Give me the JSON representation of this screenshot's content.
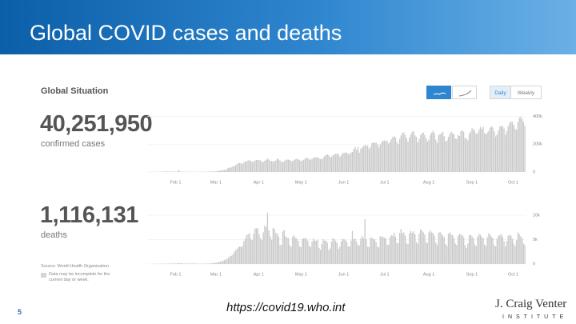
{
  "slide": {
    "title": "Global COVID cases and deaths",
    "panel_title": "Global Situation",
    "cases_total": "40,251,950",
    "cases_caption": "confirmed cases",
    "deaths_total": "1,116,131",
    "deaths_caption": "deaths",
    "source": "Source: World Health Organization",
    "note": "Data may be incomplete for the current day or week.",
    "buttons": [
      "Daily",
      "Weekly"
    ],
    "page_number": "5",
    "url": "https://covid19.who.int",
    "logo": "J. Craig Venter",
    "logo_sub": "INSTITUTE"
  },
  "chart_data": [
    {
      "type": "bar",
      "color": "#c9c9c9",
      "grid": true,
      "categories": [
        null,
        null,
        null,
        null,
        null,
        null,
        null,
        null,
        null,
        null,
        "Feb 1",
        null,
        null,
        null,
        null,
        null,
        null,
        null,
        null,
        null,
        null,
        null,
        null,
        null,
        null,
        null,
        null,
        null,
        null,
        null,
        null,
        null,
        null,
        null,
        null,
        null,
        null,
        null,
        null,
        "Mar 1",
        null,
        null,
        null,
        null,
        null,
        null,
        null,
        null,
        null,
        null,
        null,
        null,
        null,
        null,
        null,
        null,
        null,
        null,
        null,
        null,
        null,
        null,
        null,
        null,
        null,
        null,
        null,
        null,
        null,
        null,
        "Apr 1",
        null,
        null,
        null,
        null,
        null,
        null,
        null,
        null,
        null,
        null,
        null,
        null,
        null,
        null,
        null,
        null,
        null,
        null,
        null,
        null,
        null,
        null,
        null,
        null,
        null,
        null,
        null,
        null,
        null,
        "May 1",
        null,
        null,
        null,
        null,
        null,
        null,
        null,
        null,
        null,
        null,
        null,
        null,
        null,
        null,
        null,
        null,
        null,
        null,
        null,
        null,
        null,
        null,
        null,
        null,
        null,
        null,
        null,
        null,
        null,
        null,
        "Jun 1",
        null,
        null,
        null,
        null,
        null,
        null,
        null,
        null,
        null,
        null,
        null,
        null,
        null,
        null,
        null,
        null,
        null,
        null,
        null,
        null,
        null,
        null,
        null,
        null,
        null,
        null,
        null,
        null,
        null,
        "Jul 1",
        null,
        null,
        null,
        null,
        null,
        null,
        null,
        null,
        null,
        null,
        null,
        null,
        null,
        null,
        null,
        null,
        null,
        null,
        null,
        null,
        null,
        null,
        null,
        null,
        null,
        null,
        null,
        null,
        null,
        null,
        "Aug 1",
        null,
        null,
        null,
        null,
        null,
        null,
        null,
        null,
        null,
        null,
        null,
        null,
        null,
        null,
        null,
        null,
        null,
        null,
        null,
        null,
        null,
        null,
        null,
        null,
        null,
        null,
        null,
        null,
        null,
        null,
        "Sep 1",
        null,
        null,
        null,
        null,
        null,
        null,
        null,
        null,
        null,
        null,
        null,
        null,
        null,
        null,
        null,
        null,
        null,
        null,
        null,
        null,
        null,
        null,
        null,
        null,
        null,
        null,
        null,
        null,
        null,
        "Oct 1",
        null,
        null,
        null,
        null,
        null,
        null,
        null,
        null,
        null,
        null,
        null,
        null,
        null,
        null,
        null,
        null,
        null,
        null
      ],
      "values": [
        0.6,
        0.1,
        0.3,
        0.7,
        0.7,
        0.8,
        1.8,
        1.2,
        1.7,
        2.0,
        2.1,
        2.6,
        2.8,
        3.2,
        3.8,
        3.2,
        3.4,
        2.7,
        3.0,
        2.5,
        2.0,
        2.0,
        15.1,
        4.0,
        2.6,
        2.1,
        2.1,
        2.0,
        1.7,
        0.6,
        1.0,
        1.1,
        1.4,
        0.6,
        0.9,
        0.9,
        1.2,
        1.4,
        1.8,
        2.0,
        1.9,
        2.4,
        2.2,
        2.8,
        2.8,
        3.9,
        3.6,
        3.6,
        4.4,
        4.6,
        6.9,
        8.9,
        10.6,
        11.4,
        13.9,
        13.7,
        16.3,
        24.5,
        30.1,
        31.5,
        32.8,
        40.1,
        41.2,
        48.7,
        55.8,
        62.9,
        64.9,
        62.3,
        58.3,
        70.5,
        75.3,
        77.2,
        83.5,
        84.3,
        78.4,
        72.6,
        74.3,
        82.1,
        86.3,
        86.0,
        86.8,
        81.9,
        73.1,
        71.8,
        81.2,
        87.3,
        97.2,
        89.4,
        79.0,
        78.3,
        73.6,
        80.0,
        83.4,
        98.2,
        89.7,
        82.5,
        73.5,
        72.8,
        76.5,
        87.4,
        89.2,
        88.7,
        85.8,
        80.1,
        77.2,
        85.4,
        91.2,
        94.5,
        92.8,
        86.5,
        78.6,
        83.0,
        88.1,
        97.4,
        101.1,
        99.6,
        92.3,
        87.2,
        97.3,
        100.6,
        105.9,
        105.4,
        107.0,
        98.7,
        94.3,
        91.5,
        101.2,
        114.4,
        121.9,
        127.5,
        120.6,
        106.2,
        109.8,
        120.9,
        125.5,
        130.8,
        131.8,
        130.5,
        109.0,
        121.4,
        134.9,
        137.5,
        140.1,
        139.4,
        131.4,
        127.9,
        139.7,
        144.4,
        166.3,
        181.2,
        157.9,
        181.3,
        139.4,
        166.9,
        176.5,
        185.4,
        194.7,
        188.5,
        191.3,
        165.8,
        178.6,
        207.2,
        212.5,
        207.4,
        213.8,
        199.7,
        176.3,
        197.5,
        214.1,
        225.3,
        228.0,
        220.6,
        225.0,
        204.3,
        216.5,
        234.4,
        251.5,
        257.4,
        248.2,
        216.3,
        201.2,
        237.0,
        262.6,
        281.0,
        283.6,
        265.7,
        242.9,
        218.9,
        248.3,
        271.5,
        289.6,
        292.0,
        263.2,
        253.2,
        212.7,
        237.0,
        264.7,
        280.6,
        283.8,
        266.8,
        242.9,
        219.4,
        231.6,
        267.5,
        283.5,
        297.0,
        279.4,
        232.4,
        209.6,
        264.9,
        273.8,
        277.6,
        288.5,
        257.4,
        221.8,
        226.4,
        253.0,
        274.5,
        290.1,
        279.8,
        271.4,
        240.8,
        238.2,
        264.5,
        259.7,
        293.0,
        299.1,
        290.2,
        242.6,
        241.1,
        227.6,
        276.1,
        290.5,
        314.2,
        308.8,
        294.8,
        272.6,
        281.3,
        303.3,
        324.0,
        309.7,
        327.2,
        280.2,
        270.2,
        283.6,
        294.9,
        318.6,
        328.5,
        320.3,
        291.7,
        255.9,
        270.6,
        299.1,
        328.5,
        330.3,
        330.0,
        313.2,
        267.7,
        292.5,
        328.1,
        355.6,
        362.9,
        360.6,
        339.2,
        311.3,
        302.9,
        357.7,
        391.4,
        396.8,
        383.5,
        359.7,
        331.2
      ],
      "ylim": [
        0,
        420
      ],
      "yticks": [
        0,
        {
          "value": 200,
          "label": "200k"
        },
        {
          "value": 400,
          "label": "400k"
        }
      ]
    },
    {
      "type": "bar",
      "color": "#c9c9c9",
      "grid": true,
      "categories": [
        null,
        null,
        null,
        null,
        null,
        null,
        null,
        null,
        null,
        null,
        "Feb 1",
        null,
        null,
        null,
        null,
        null,
        null,
        null,
        null,
        null,
        null,
        null,
        null,
        null,
        null,
        null,
        null,
        null,
        null,
        null,
        null,
        null,
        null,
        null,
        null,
        null,
        null,
        null,
        null,
        "Mar 1",
        null,
        null,
        null,
        null,
        null,
        null,
        null,
        null,
        null,
        null,
        null,
        null,
        null,
        null,
        null,
        null,
        null,
        null,
        null,
        null,
        null,
        null,
        null,
        null,
        null,
        null,
        null,
        null,
        null,
        null,
        "Apr 1",
        null,
        null,
        null,
        null,
        null,
        null,
        null,
        null,
        null,
        null,
        null,
        null,
        null,
        null,
        null,
        null,
        null,
        null,
        null,
        null,
        null,
        null,
        null,
        null,
        null,
        null,
        null,
        null,
        null,
        "May 1",
        null,
        null,
        null,
        null,
        null,
        null,
        null,
        null,
        null,
        null,
        null,
        null,
        null,
        null,
        null,
        null,
        null,
        null,
        null,
        null,
        null,
        null,
        null,
        null,
        null,
        null,
        null,
        null,
        null,
        null,
        "Jun 1",
        null,
        null,
        null,
        null,
        null,
        null,
        null,
        null,
        null,
        null,
        null,
        null,
        null,
        null,
        null,
        null,
        null,
        null,
        null,
        null,
        null,
        null,
        null,
        null,
        null,
        null,
        null,
        null,
        null,
        "Jul 1",
        null,
        null,
        null,
        null,
        null,
        null,
        null,
        null,
        null,
        null,
        null,
        null,
        null,
        null,
        null,
        null,
        null,
        null,
        null,
        null,
        null,
        null,
        null,
        null,
        null,
        null,
        null,
        null,
        null,
        null,
        "Aug 1",
        null,
        null,
        null,
        null,
        null,
        null,
        null,
        null,
        null,
        null,
        null,
        null,
        null,
        null,
        null,
        null,
        null,
        null,
        null,
        null,
        null,
        null,
        null,
        null,
        null,
        null,
        null,
        null,
        null,
        null,
        "Sep 1",
        null,
        null,
        null,
        null,
        null,
        null,
        null,
        null,
        null,
        null,
        null,
        null,
        null,
        null,
        null,
        null,
        null,
        null,
        null,
        null,
        null,
        null,
        null,
        null,
        null,
        null,
        null,
        null,
        null,
        "Oct 1",
        null,
        null,
        null,
        null,
        null,
        null,
        null,
        null,
        null,
        null,
        null,
        null,
        null,
        null,
        null,
        null,
        null,
        null
      ],
      "values": [
        0.02,
        0.0,
        0.01,
        0.02,
        0.02,
        0.03,
        0.03,
        0.04,
        0.04,
        0.04,
        0.05,
        0.06,
        0.06,
        0.07,
        0.07,
        0.08,
        0.09,
        0.09,
        0.1,
        0.1,
        0.1,
        0.1,
        0.25,
        0.14,
        0.14,
        0.1,
        0.1,
        0.1,
        0.1,
        0.1,
        0.1,
        0.1,
        0.1,
        0.1,
        0.1,
        0.05,
        0.1,
        0.05,
        0.06,
        0.06,
        0.07,
        0.08,
        0.08,
        0.09,
        0.1,
        0.1,
        0.2,
        0.2,
        0.2,
        0.3,
        0.3,
        0.4,
        0.5,
        0.5,
        0.7,
        0.8,
        0.9,
        1.1,
        1.3,
        1.6,
        1.7,
        1.9,
        2.4,
        2.8,
        3.1,
        3.4,
        3.6,
        3.5,
        3.7,
        4.7,
        5.2,
        5.9,
        6.1,
        6.3,
        5.2,
        4.9,
        6.2,
        7.3,
        7.3,
        7.4,
        6.1,
        5.3,
        4.9,
        6.5,
        7.9,
        7.6,
        10.5,
        6.9,
        5.7,
        5.0,
        7.4,
        7.2,
        6.4,
        6.2,
        5.6,
        3.9,
        3.9,
        6.7,
        7.0,
        5.7,
        5.4,
        5.3,
        3.9,
        3.5,
        5.6,
        5.9,
        5.4,
        5.3,
        4.8,
        3.6,
        3.5,
        5.1,
        5.3,
        5.3,
        5.2,
        4.8,
        3.7,
        3.5,
        4.6,
        5.2,
        4.8,
        4.8,
        4.9,
        3.3,
        2.9,
        4.1,
        5.1,
        4.8,
        4.8,
        4.4,
        2.9,
        3.2,
        4.6,
        5.3,
        5.1,
        4.8,
        4.3,
        3.1,
        3.6,
        4.6,
        5.2,
        5.1,
        4.9,
        4.5,
        3.6,
        3.6,
        4.8,
        6.8,
        5.1,
        5.2,
        4.6,
        3.9,
        3.8,
        5.2,
        5.7,
        5.3,
        9.2,
        5.1,
        3.5,
        3.5,
        5.4,
        5.4,
        5.1,
        5.1,
        4.5,
        3.6,
        3.4,
        5.7,
        5.6,
        5.6,
        5.4,
        5.3,
        4.0,
        3.9,
        5.5,
        5.9,
        5.8,
        6.4,
        5.6,
        4.3,
        4.3,
        6.4,
        7.2,
        6.3,
        6.5,
        5.8,
        4.2,
        4.1,
        6.3,
        6.8,
        6.4,
        6.7,
        6.1,
        4.5,
        4.2,
        6.2,
        7.1,
        6.9,
        6.5,
        6.0,
        4.4,
        4.3,
        6.5,
        6.9,
        6.5,
        6.4,
        5.8,
        4.4,
        3.9,
        6.4,
        6.6,
        6.2,
        5.8,
        5.5,
        4.1,
        3.7,
        6.2,
        6.5,
        6.1,
        5.9,
        5.3,
        4.2,
        3.9,
        5.8,
        6.2,
        6.0,
        5.9,
        5.5,
        3.9,
        3.3,
        4.2,
        5.9,
        6.0,
        5.7,
        5.3,
        4.0,
        3.7,
        5.6,
        6.2,
        6.0,
        5.6,
        5.3,
        4.0,
        3.7,
        5.5,
        6.3,
        6.0,
        5.6,
        5.3,
        3.9,
        3.6,
        5.2,
        5.8,
        5.9,
        6.2,
        5.6,
        4.7,
        3.6,
        4.7,
        5.8,
        6.0,
        5.8,
        5.2,
        4.2,
        3.7,
        4.9,
        6.5,
        6.1,
        5.7,
        5.3,
        4.2,
        3.9
      ],
      "ylim": [
        0,
        11
      ],
      "yticks": [
        0,
        {
          "value": 5,
          "label": "5k"
        },
        {
          "value": 10,
          "label": "10k"
        }
      ]
    }
  ]
}
